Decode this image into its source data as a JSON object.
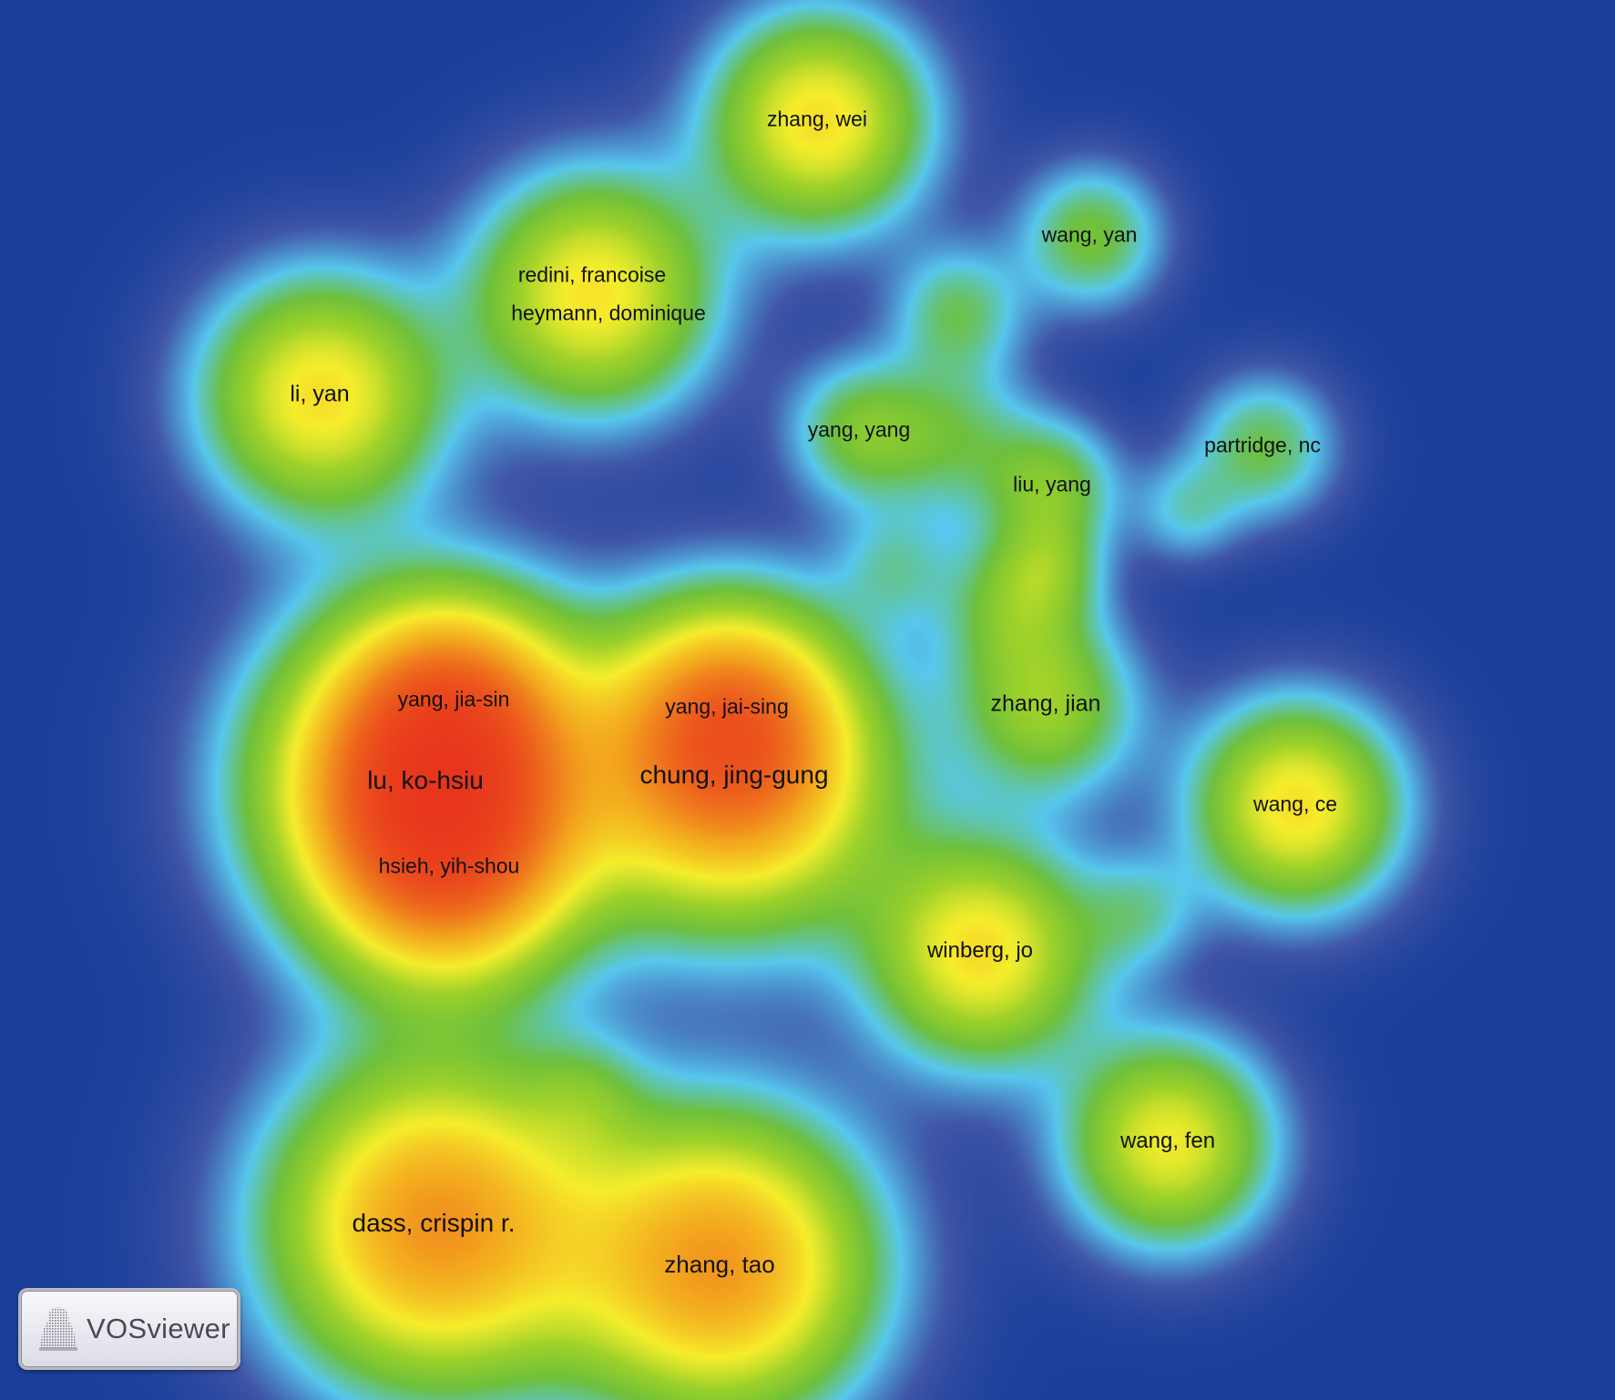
{
  "app": {
    "name": "VOSviewer"
  },
  "view": {
    "mode": "density visualization"
  },
  "colors": {
    "background": "#1b3f9a",
    "ramp": [
      "#1b3f9a",
      "#3c56a6",
      "#5fcbee",
      "#6fc23a",
      "#f6ee2c",
      "#f3a81d",
      "#e6231d"
    ]
  },
  "labels": [
    {
      "id": "zhang-wei",
      "text": "zhang, wei",
      "weight": 0.82
    },
    {
      "id": "wang-yan",
      "text": "wang, yan",
      "weight": 0.55
    },
    {
      "id": "redini-francoise",
      "text": "redini, francoise",
      "weight": 0.62
    },
    {
      "id": "heymann-dominique",
      "text": "heymann, dominique",
      "weight": 0.62
    },
    {
      "id": "li-yan",
      "text": "li, yan",
      "weight": 0.82
    },
    {
      "id": "yang-yang",
      "text": "yang, yang",
      "weight": 0.5
    },
    {
      "id": "partridge-nc",
      "text": "partridge, nc",
      "weight": 0.5
    },
    {
      "id": "liu-yang",
      "text": "liu, yang",
      "weight": 0.55
    },
    {
      "id": "yang-jia-sin",
      "text": "yang, jia-sin",
      "weight": 0.7
    },
    {
      "id": "yang-jai-sing",
      "text": "yang, jai-sing",
      "weight": 0.7
    },
    {
      "id": "lu-ko-hsiu",
      "text": "lu, ko-hsiu",
      "weight": 1.0
    },
    {
      "id": "chung-jing-gung",
      "text": "chung, jing-gung",
      "weight": 0.95
    },
    {
      "id": "zhang-jian",
      "text": "zhang, jian",
      "weight": 0.6
    },
    {
      "id": "hsieh-yih-shou",
      "text": "hsieh, yih-shou",
      "weight": 0.75
    },
    {
      "id": "wang-ce",
      "text": "wang, ce",
      "weight": 0.75
    },
    {
      "id": "winberg-jo",
      "text": "winberg, jo",
      "weight": 0.78
    },
    {
      "id": "wang-fen",
      "text": "wang, fen",
      "weight": 0.72
    },
    {
      "id": "dass-crispin-r",
      "text": "dass, crispin r.",
      "weight": 0.95
    },
    {
      "id": "zhang-tao",
      "text": "zhang, tao",
      "weight": 0.92
    }
  ]
}
